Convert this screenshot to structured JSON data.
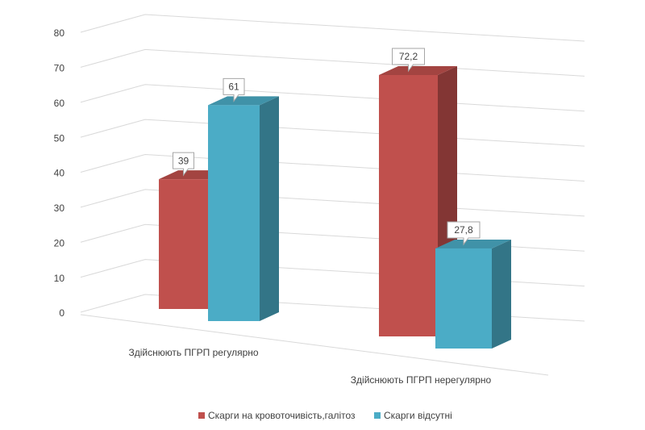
{
  "chart_data": {
    "type": "bar3d",
    "categories": [
      "Здійснюють ПГРП регулярно",
      "Здійснюють ПГРП нерегулярно"
    ],
    "series": [
      {
        "name": "Скарги на кровоточивість,галітоз",
        "color": "#c0504d",
        "values": [
          39,
          72.2
        ],
        "value_labels": [
          "39",
          "72,2"
        ]
      },
      {
        "name": "Скарги відсутні",
        "color": "#4bacc6",
        "values": [
          61,
          27.8
        ],
        "value_labels": [
          "61",
          "27,8"
        ]
      }
    ],
    "ylim": [
      0,
      80
    ],
    "yticks": [
      0,
      10,
      20,
      30,
      40,
      50,
      60,
      70,
      80
    ],
    "grid": true,
    "legend": "bottom"
  }
}
